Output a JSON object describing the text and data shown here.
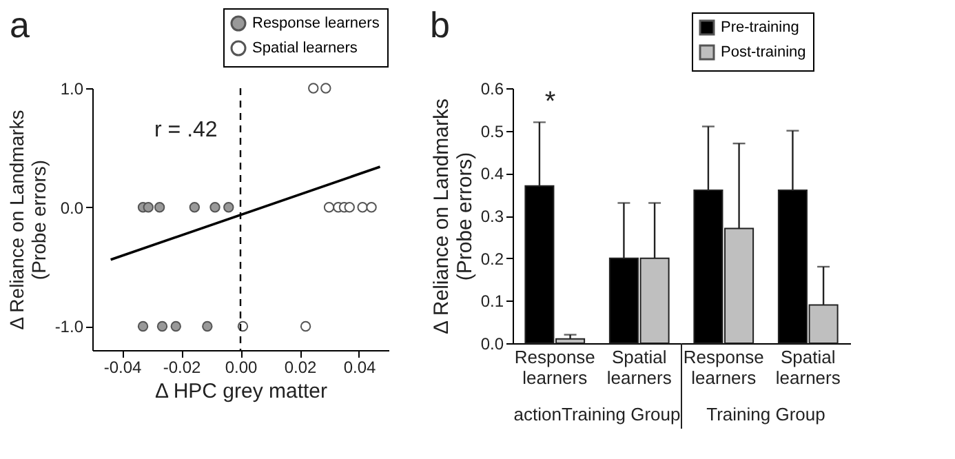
{
  "chart_data": [
    {
      "type": "scatter",
      "xlabel": "Δ HPC grey matter",
      "ylabel": "Δ Reliance on Landmarks\n(Probe errors)",
      "xlim": [
        -0.05,
        0.05
      ],
      "ylim": [
        -1.2,
        1.0
      ],
      "xticks": [
        -0.04,
        -0.02,
        {
          "value": 0,
          "label": "0.00"
        },
        0.02,
        0.04
      ],
      "yticks": [
        {
          "value": -1,
          "label": "-1.0"
        },
        {
          "value": 0,
          "label": "0.0"
        },
        {
          "value": 1,
          "label": "1.0"
        }
      ],
      "legend": "top right",
      "grid": false,
      "marker": "circle",
      "series": [
        {
          "name": "Response learners",
          "color": "#999999",
          "x": [
            -0.0329,
            -0.0311,
            -0.0273,
            -0.0155,
            -0.0086,
            -0.004,
            -0.0329,
            -0.0264,
            -0.0218,
            -0.0112
          ],
          "values": [
            0,
            0,
            0,
            0,
            0,
            0,
            -1,
            -1,
            -1,
            -1
          ]
        },
        {
          "name": "Spatial learners",
          "color": "#ffffff",
          "x": [
            0.0246,
            0.0288,
            0.0299,
            0.033,
            0.035,
            0.0368,
            0.0412,
            0.0442,
            0.0008,
            0.022
          ],
          "values": [
            1,
            1,
            0,
            0,
            0,
            0,
            0,
            0,
            -1,
            -1
          ]
        },
        {
          "type": "line",
          "marker": "none",
          "color": "#000000",
          "x": [
            -0.0438,
            0.0471
          ],
          "values": [
            -0.44,
            0.34
          ]
        }
      ],
      "ref_lines": [
        {
          "axis": "x",
          "value": 0,
          "line_style": "dashed",
          "color": "#000000"
        }
      ],
      "annotations": [
        "a",
        "r = .42"
      ]
    },
    {
      "type": "bar",
      "ylabel": "Δ Reliance on Landmarks\n(Probe errors)",
      "categories": [
        "Response learners",
        "Spatial learners",
        "Response learners",
        "Spatial learners"
      ],
      "ylim": [
        0,
        0.6
      ],
      "yticks": [
        {
          "value": 0,
          "label": "0.0"
        },
        0.1,
        0.2,
        0.3,
        0.4,
        0.5,
        0.6
      ],
      "legend": "top right",
      "grid": false,
      "series": [
        {
          "name": "Pre-training",
          "color": "#000000",
          "values": [
            0.37,
            0.2,
            0.36,
            0.36
          ],
          "errors": [
            [
              0.37,
              0.52
            ],
            [
              0.2,
              0.33
            ],
            [
              0.36,
              0.51
            ],
            [
              0.36,
              0.5
            ]
          ]
        },
        {
          "name": "Post-training",
          "color": "#bfbfbf",
          "values": [
            0.01,
            0.2,
            0.27,
            0.09
          ],
          "errors": [
            [
              0.01,
              0.02
            ],
            [
              0.2,
              0.33
            ],
            [
              0.27,
              0.47
            ],
            [
              0.09,
              0.18
            ]
          ]
        }
      ],
      "annotations": [
        "b",
        "*",
        "actionTraining Group",
        "Training Group"
      ]
    }
  ]
}
